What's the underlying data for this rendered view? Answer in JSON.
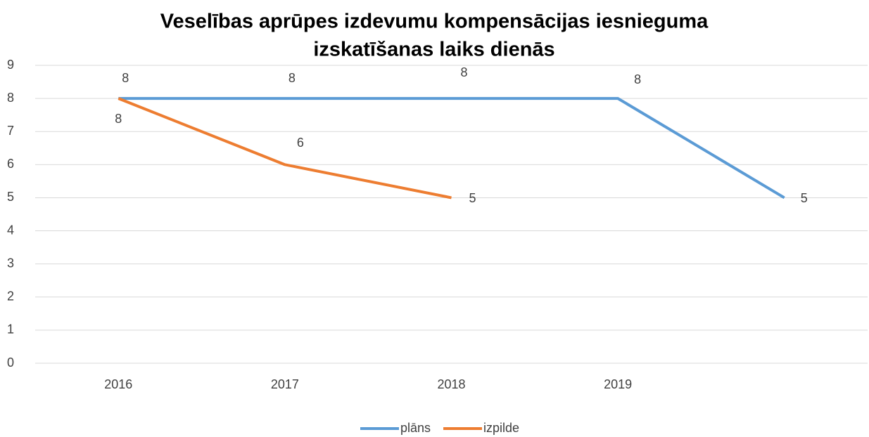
{
  "chart_data": {
    "type": "line",
    "title": [
      "Veselības aprūpes izdevumu kompensācijas iesnieguma",
      "izskatīšanas laiks dienās"
    ],
    "categories": [
      "2016",
      "2017",
      "2018",
      "2019",
      null
    ],
    "series": [
      {
        "name": "plāns",
        "color": "#5b9bd5",
        "values": [
          8,
          8,
          8,
          8,
          5
        ]
      },
      {
        "name": "izpilde",
        "color": "#ed7d31",
        "values": [
          8,
          6,
          5,
          null,
          null
        ]
      }
    ],
    "ylim": [
      0,
      9
    ],
    "yticks": [
      0,
      1,
      2,
      3,
      4,
      5,
      6,
      7,
      8,
      9
    ],
    "grid": true,
    "legend": "bottom"
  }
}
